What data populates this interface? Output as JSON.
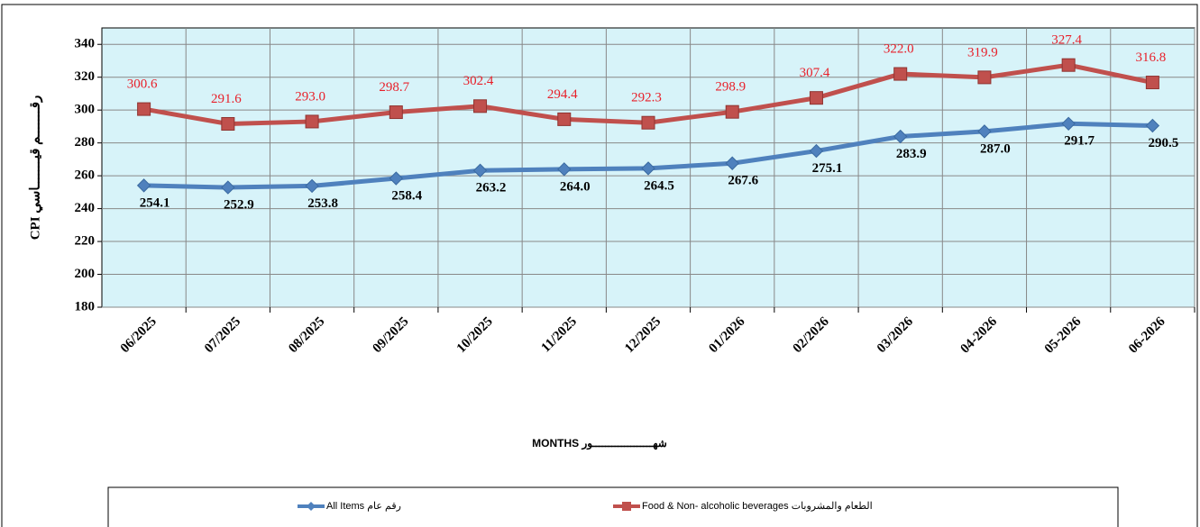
{
  "chart_data": {
    "type": "line",
    "y_label": "CPI   رقـــــــم قيـــــــاسي",
    "x_label": "MONTHS   شهـــــــــــــــــــور",
    "categories": [
      "06/2025",
      "07/2025",
      "08/2025",
      "09/2025",
      "10/2025",
      "11/2025",
      "12/2025",
      "01/2026",
      "02/2026",
      "03/2026",
      "04-2026",
      "05-2026",
      "06-2026"
    ],
    "series": [
      {
        "name": "All Items  رقم عام",
        "color": "#4f81bd",
        "values": [
          254.1,
          252.9,
          253.8,
          258.4,
          263.2,
          264.0,
          264.5,
          267.6,
          275.1,
          283.9,
          287.0,
          291.7,
          290.5
        ],
        "value_labels": [
          "254.1",
          "252.9",
          "253.8",
          "258.4",
          "263.2",
          "264.0",
          "264.5",
          "267.6",
          "275.1",
          "283.9",
          "287.0",
          "291.7",
          "290.5"
        ]
      },
      {
        "name": "Food & Non- alcoholic  beverages  الطعام والمشروبات",
        "color": "#c0504d",
        "values": [
          300.6,
          291.6,
          293.0,
          298.7,
          302.4,
          294.4,
          292.3,
          298.9,
          307.4,
          322.0,
          319.9,
          327.4,
          316.8
        ],
        "value_labels": [
          "300.6",
          "291.6",
          "293.0",
          "298.7",
          "302.4",
          "294.4",
          "292.3",
          "298.9",
          "307.4",
          "322.0",
          "319.9",
          "327.4",
          "316.8"
        ]
      }
    ],
    "ylim": [
      180,
      350
    ],
    "yticks": [
      180,
      200,
      220,
      240,
      260,
      280,
      300,
      320,
      340
    ],
    "grid": true
  }
}
